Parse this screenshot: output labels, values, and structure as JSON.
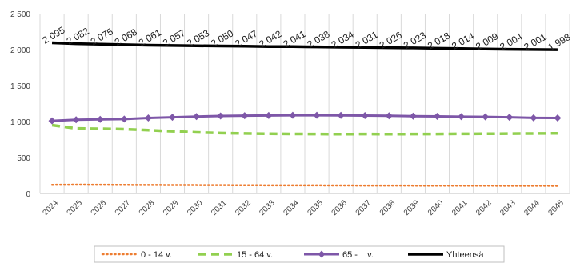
{
  "chart_data": {
    "type": "line",
    "title": "",
    "xlabel": "",
    "ylabel": "",
    "ylim": [
      0,
      2500
    ],
    "yticks": [
      0,
      500,
      1000,
      1500,
      2000,
      2500
    ],
    "ytick_labels": [
      "0",
      "500",
      "1 000",
      "1 500",
      "2 000",
      "2 500"
    ],
    "grid": "vertical",
    "legend_position": "bottom",
    "categories": [
      "2024",
      "2025",
      "2026",
      "2027",
      "2028",
      "2029",
      "2030",
      "2031",
      "2032",
      "2033",
      "2034",
      "2035",
      "2036",
      "2037",
      "2038",
      "2039",
      "2040",
      "2041",
      "2042",
      "2043",
      "2044",
      "2045"
    ],
    "series": [
      {
        "name": "0 - 14 v.",
        "style": "dotted",
        "color": "#ED7D31",
        "values": [
          120,
          122,
          121,
          119,
          118,
          117,
          116,
          115,
          114,
          113,
          112,
          112,
          111,
          110,
          110,
          109,
          109,
          108,
          108,
          107,
          107,
          106
        ]
      },
      {
        "name": "15 - 64 v.",
        "style": "dashed",
        "color": "#92D050",
        "values": [
          950,
          905,
          900,
          895,
          880,
          865,
          850,
          840,
          835,
          830,
          828,
          826,
          825,
          826,
          825,
          826,
          827,
          829,
          830,
          832,
          834,
          836
        ]
      },
      {
        "name": "65 -    v.",
        "style": "line-diamond",
        "color": "#7E57A8",
        "values": [
          1010,
          1025,
          1030,
          1035,
          1050,
          1060,
          1070,
          1078,
          1082,
          1085,
          1088,
          1088,
          1086,
          1083,
          1080,
          1075,
          1072,
          1068,
          1065,
          1060,
          1052,
          1050
        ]
      },
      {
        "name": "Yhteensä",
        "style": "thick",
        "color": "#000000",
        "values": [
          2095,
          2082,
          2075,
          2068,
          2061,
          2057,
          2053,
          2050,
          2047,
          2042,
          2041,
          2038,
          2034,
          2031,
          2026,
          2023,
          2018,
          2014,
          2009,
          2004,
          2001,
          1998
        ],
        "data_labels": [
          "2 095",
          "2 082",
          "2 075",
          "2 068",
          "2 061",
          "2 057",
          "2 053",
          "2 050",
          "2 047",
          "2 042",
          "2 041",
          "2 038",
          "2 034",
          "2 031",
          "2 026",
          "2 023",
          "2 018",
          "2 014",
          "2 009",
          "2 004",
          "2 001",
          "1 998"
        ]
      }
    ]
  }
}
